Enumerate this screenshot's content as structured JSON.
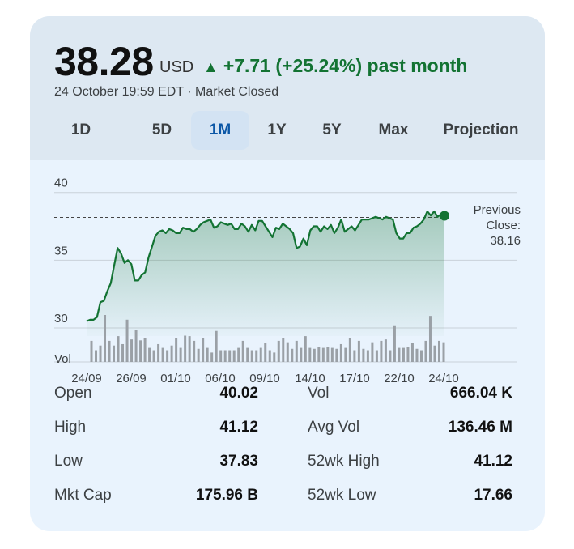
{
  "quote": {
    "price": "38.28",
    "currency": "USD",
    "change_arrow": "▲",
    "change_text": "+7.71 (+25.24%) past month",
    "timestamp": "24 October 19:59 EDT · Market Closed",
    "accent_color": "#137333"
  },
  "tabs": [
    {
      "label": "1D",
      "active": false
    },
    {
      "label": "5D",
      "active": false
    },
    {
      "label": "1M",
      "active": true
    },
    {
      "label": "1Y",
      "active": false
    },
    {
      "label": "5Y",
      "active": false
    },
    {
      "label": "Max",
      "active": false
    },
    {
      "label": "Projection",
      "active": false
    }
  ],
  "chart_data": {
    "type": "line",
    "y_ticks": [
      "40",
      "35",
      "30"
    ],
    "ylim": [
      29.4,
      40.4
    ],
    "volume_label": "Vol",
    "x_tick_labels": [
      "24/09",
      "26/09",
      "01/10",
      "06/10",
      "09/10",
      "14/10",
      "17/10",
      "22/10",
      "24/10"
    ],
    "previous_close_label": [
      "Previous",
      "Close:",
      "38.16"
    ],
    "previous_close": 38.16,
    "line_color": "#137333",
    "price_series": [
      30.5,
      30.6,
      30.6,
      30.8,
      31.9,
      32.0,
      32.7,
      33.3,
      34.6,
      35.9,
      35.5,
      34.8,
      35.0,
      34.7,
      33.5,
      33.5,
      33.9,
      34.1,
      35.2,
      36.0,
      36.8,
      37.1,
      37.2,
      37.0,
      37.3,
      37.2,
      37.0,
      37.0,
      37.4,
      37.3,
      37.3,
      37.1,
      37.3,
      37.6,
      37.8,
      37.9,
      38.0,
      37.4,
      37.5,
      37.8,
      37.7,
      37.6,
      37.7,
      37.3,
      37.3,
      37.7,
      37.5,
      37.1,
      37.6,
      37.2,
      37.9,
      37.9,
      37.5,
      37.1,
      36.7,
      37.4,
      37.3,
      37.7,
      37.5,
      37.3,
      37.0,
      35.9,
      36.0,
      36.6,
      36.1,
      37.2,
      37.5,
      37.5,
      37.1,
      37.5,
      37.3,
      37.6,
      37.0,
      37.4,
      38.0,
      37.1,
      37.3,
      37.5,
      37.2,
      37.6,
      38.0,
      38.0,
      38.0,
      38.1,
      38.2,
      38.1,
      38.0,
      38.2,
      38.1,
      38.0,
      37.0,
      36.6,
      36.6,
      37.0,
      37.0,
      37.4,
      37.5,
      37.7,
      38.0,
      38.6,
      38.3,
      38.6,
      38.2,
      38.4,
      38.28
    ],
    "volume_bars": [
      0.45,
      0.25,
      0.35,
      1.0,
      0.45,
      0.35,
      0.55,
      0.38,
      0.9,
      0.48,
      0.68,
      0.46,
      0.5,
      0.3,
      0.25,
      0.38,
      0.3,
      0.25,
      0.35,
      0.5,
      0.3,
      0.56,
      0.55,
      0.45,
      0.28,
      0.5,
      0.3,
      0.2,
      0.66,
      0.25,
      0.25,
      0.25,
      0.25,
      0.3,
      0.45,
      0.3,
      0.25,
      0.25,
      0.3,
      0.4,
      0.25,
      0.2,
      0.45,
      0.5,
      0.42,
      0.28,
      0.45,
      0.3,
      0.55,
      0.3,
      0.28,
      0.32,
      0.3,
      0.32,
      0.3,
      0.28,
      0.38,
      0.3,
      0.5,
      0.25,
      0.45,
      0.28,
      0.25,
      0.42,
      0.25,
      0.45,
      0.48,
      0.25,
      0.78,
      0.3,
      0.3,
      0.32,
      0.4,
      0.28,
      0.25,
      0.45,
      0.98,
      0.35,
      0.45,
      0.42
    ]
  },
  "stats": {
    "left": [
      {
        "label": "Open",
        "value": "40.02"
      },
      {
        "label": "High",
        "value": "41.12"
      },
      {
        "label": "Low",
        "value": "37.83"
      },
      {
        "label": "Mkt Cap",
        "value": "175.96 B"
      }
    ],
    "right": [
      {
        "label": "Vol",
        "value": "666.04 K"
      },
      {
        "label": "Avg Vol",
        "value": "136.46 M"
      },
      {
        "label": "52wk High",
        "value": "41.12"
      },
      {
        "label": "52wk Low",
        "value": "17.66"
      }
    ]
  }
}
